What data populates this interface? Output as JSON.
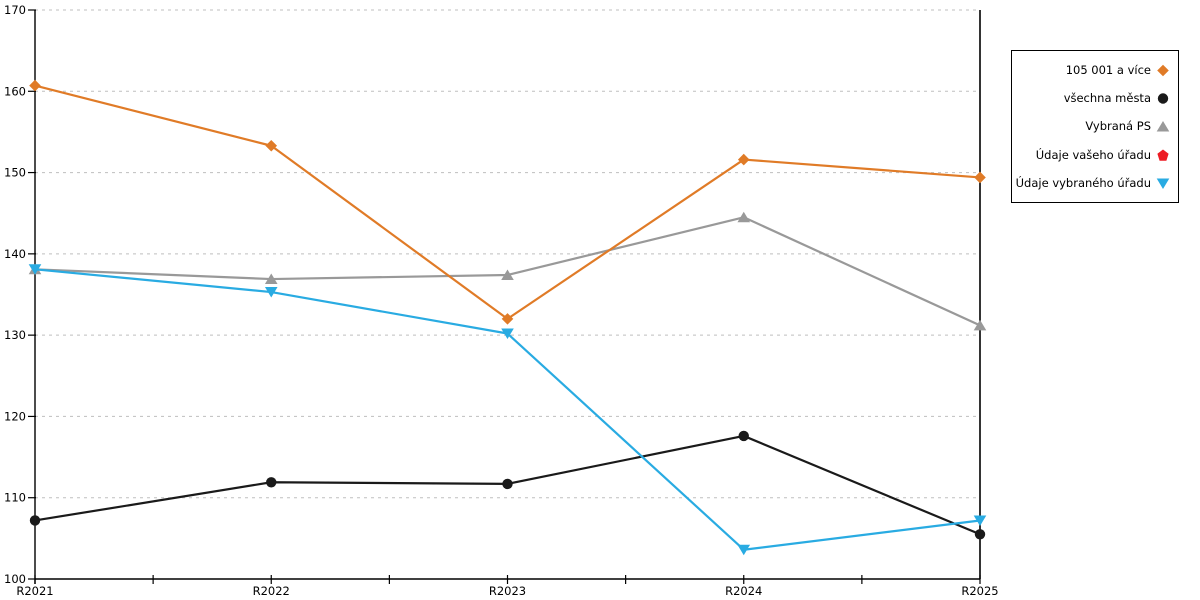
{
  "chart_data": {
    "type": "line",
    "title": "",
    "xlabel": "",
    "ylabel": "",
    "x_categories": [
      "R2021",
      "R2022",
      "R2023",
      "R2024",
      "R2025"
    ],
    "ylim": [
      100,
      170
    ],
    "y_tick_step": 10,
    "y_tick_labels": [
      "100",
      "110",
      "120",
      "130",
      "140",
      "150",
      "160",
      "170"
    ],
    "grid": "horizontal-dashed",
    "gridline_color": "#bfbfbf",
    "axis_color": "#000000",
    "legend_position": "right",
    "has_right_boundary_line": true,
    "series": [
      {
        "name": "105 001 a více",
        "color": "#E07B27",
        "marker": "diamond",
        "values": [
          160.7,
          153.3,
          132.0,
          151.6,
          149.4
        ]
      },
      {
        "name": "všechna města",
        "color": "#1A1A1A",
        "marker": "circle",
        "values": [
          107.2,
          111.9,
          111.7,
          117.6,
          105.5
        ]
      },
      {
        "name": "Vybraná PS",
        "color": "#999999",
        "marker": "triangle-up",
        "values": [
          138.1,
          136.9,
          137.4,
          144.5,
          131.2
        ]
      },
      {
        "name": "Údaje vašeho úřadu",
        "color": "#ED1C24",
        "marker": "pentagon",
        "values": []
      },
      {
        "name": "Údaje vybraného úřadu",
        "color": "#29ABE2",
        "marker": "triangle-down",
        "values": [
          138.1,
          135.3,
          130.2,
          103.6,
          107.2
        ]
      }
    ]
  }
}
